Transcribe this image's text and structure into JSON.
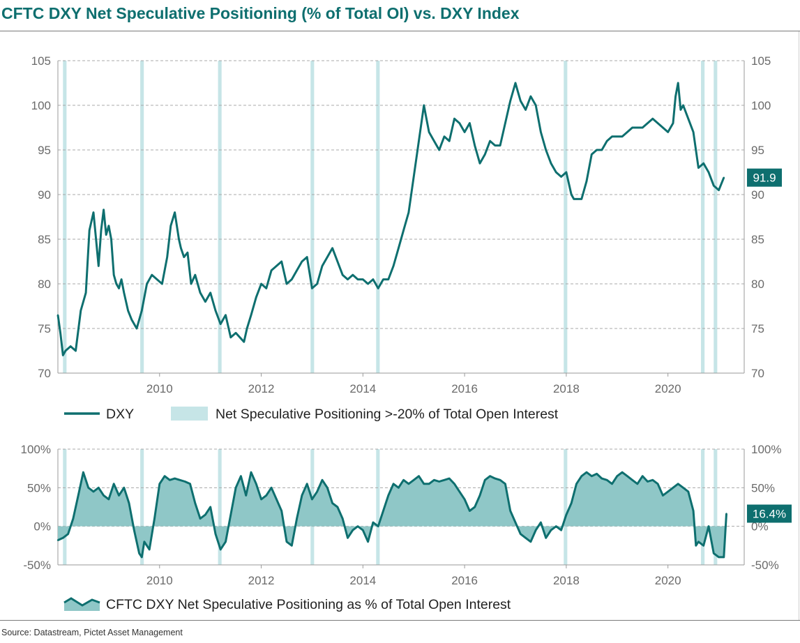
{
  "title": "CFTC DXY Net Speculative Positioning (% of Total OI) vs. DXY Index",
  "source": "Source: Datastream, Pictet Asset Management",
  "colors": {
    "line": "#0e6f6f",
    "highlight": "#c6e5e7",
    "area": "#8fc7c7",
    "grid": "#a8a8a8"
  },
  "chart_data": [
    {
      "type": "line",
      "name": "top-panel",
      "x_tick_labels": [
        "2010",
        "2012",
        "2014",
        "2016",
        "2018",
        "2020"
      ],
      "xlim": [
        2008.0,
        2021.5
      ],
      "ylim": [
        70,
        105
      ],
      "y_ticks": [
        70,
        75,
        80,
        85,
        90,
        95,
        100,
        105
      ],
      "y_tick_labels": [
        "70",
        "75",
        "80",
        "85",
        "90",
        "95",
        "100",
        "105"
      ],
      "grid": true,
      "legend_placement": "bottom",
      "last_value_label": "91.9",
      "highlight_periods": [
        [
          2008.1,
          2008.17
        ],
        [
          2009.62,
          2009.69
        ],
        [
          2011.15,
          2011.22
        ],
        [
          2012.97,
          2013.04
        ],
        [
          2014.26,
          2014.33
        ],
        [
          2017.95,
          2018.02
        ],
        [
          2020.65,
          2020.72
        ],
        [
          2020.9,
          2020.97
        ]
      ],
      "legend": {
        "line_label": "DXY",
        "band_label": "Net Speculative Positioning >-20% of Total Open Interest"
      },
      "series": [
        {
          "name": "DXY",
          "x": [
            2008.0,
            2008.05,
            2008.1,
            2008.15,
            2008.25,
            2008.35,
            2008.45,
            2008.55,
            2008.62,
            2008.7,
            2008.75,
            2008.8,
            2008.85,
            2008.9,
            2008.95,
            2009.0,
            2009.05,
            2009.1,
            2009.15,
            2009.2,
            2009.25,
            2009.3,
            2009.38,
            2009.45,
            2009.55,
            2009.65,
            2009.75,
            2009.85,
            2009.95,
            2010.05,
            2010.15,
            2010.22,
            2010.3,
            2010.38,
            2010.42,
            2010.48,
            2010.55,
            2010.62,
            2010.7,
            2010.8,
            2010.9,
            2011.0,
            2011.1,
            2011.2,
            2011.3,
            2011.4,
            2011.5,
            2011.58,
            2011.66,
            2011.72,
            2011.8,
            2011.9,
            2012.0,
            2012.1,
            2012.2,
            2012.3,
            2012.4,
            2012.5,
            2012.6,
            2012.7,
            2012.8,
            2012.9,
            2013.0,
            2013.1,
            2013.2,
            2013.3,
            2013.4,
            2013.5,
            2013.6,
            2013.7,
            2013.8,
            2013.9,
            2014.0,
            2014.1,
            2014.2,
            2014.3,
            2014.4,
            2014.5,
            2014.6,
            2014.7,
            2014.8,
            2014.9,
            2015.0,
            2015.1,
            2015.2,
            2015.25,
            2015.3,
            2015.4,
            2015.5,
            2015.6,
            2015.7,
            2015.8,
            2015.9,
            2016.0,
            2016.1,
            2016.2,
            2016.3,
            2016.4,
            2016.5,
            2016.6,
            2016.7,
            2016.8,
            2016.9,
            2017.0,
            2017.05,
            2017.1,
            2017.2,
            2017.3,
            2017.4,
            2017.5,
            2017.6,
            2017.7,
            2017.8,
            2017.9,
            2018.0,
            2018.1,
            2018.15,
            2018.2,
            2018.3,
            2018.4,
            2018.5,
            2018.6,
            2018.7,
            2018.8,
            2018.9,
            2019.0,
            2019.1,
            2019.2,
            2019.3,
            2019.4,
            2019.5,
            2019.6,
            2019.7,
            2019.8,
            2019.9,
            2020.0,
            2020.1,
            2020.15,
            2020.2,
            2020.25,
            2020.3,
            2020.4,
            2020.5,
            2020.6,
            2020.7,
            2020.8,
            2020.9,
            2021.0,
            2021.1
          ],
          "y": [
            76.5,
            74.5,
            72.0,
            72.5,
            73.0,
            72.5,
            77.0,
            79.0,
            86.0,
            88.0,
            85.0,
            82.0,
            86.0,
            88.3,
            85.5,
            86.5,
            85.0,
            81.0,
            80.0,
            79.5,
            80.5,
            79.0,
            77.0,
            76.0,
            75.0,
            77.0,
            80.0,
            81.0,
            80.5,
            80.0,
            83.0,
            86.5,
            88.0,
            85.0,
            84.0,
            83.0,
            83.5,
            80.0,
            81.0,
            79.0,
            78.0,
            79.0,
            77.0,
            75.5,
            76.5,
            74.0,
            74.5,
            74.0,
            73.5,
            75.0,
            76.5,
            78.5,
            80.0,
            79.5,
            81.5,
            82.0,
            82.5,
            80.0,
            80.5,
            81.5,
            82.5,
            83.0,
            79.5,
            80.0,
            82.0,
            83.0,
            84.0,
            82.5,
            81.0,
            80.5,
            81.0,
            80.5,
            80.5,
            80.0,
            80.5,
            79.5,
            80.5,
            80.5,
            82.0,
            84.0,
            86.0,
            88.0,
            92.0,
            96.0,
            100.0,
            98.5,
            97.0,
            96.0,
            95.0,
            96.5,
            96.0,
            98.5,
            98.0,
            97.0,
            98.0,
            95.5,
            93.5,
            94.5,
            96.0,
            95.5,
            95.5,
            98.0,
            100.5,
            102.5,
            101.5,
            100.5,
            99.5,
            101.0,
            100.0,
            97.0,
            95.0,
            93.5,
            92.5,
            92.0,
            92.5,
            90.0,
            89.5,
            89.5,
            89.5,
            91.5,
            94.5,
            95.0,
            95.0,
            96.0,
            96.5,
            96.5,
            96.5,
            97.0,
            97.5,
            97.5,
            97.5,
            98.0,
            98.5,
            98.0,
            97.5,
            97.0,
            98.0,
            101.0,
            102.5,
            99.5,
            100.0,
            98.5,
            97.0,
            93.0,
            93.5,
            92.5,
            91.0,
            90.5,
            91.9
          ]
        }
      ]
    },
    {
      "type": "area",
      "name": "bottom-panel",
      "x_tick_labels": [
        "2010",
        "2012",
        "2014",
        "2016",
        "2018",
        "2020"
      ],
      "xlim": [
        2008.0,
        2021.5
      ],
      "ylim": [
        -50,
        100
      ],
      "y_ticks": [
        -50,
        0,
        50,
        100
      ],
      "y_tick_labels": [
        "-50%",
        "0%",
        "50%",
        "100%"
      ],
      "grid": true,
      "legend_placement": "bottom",
      "last_value_label": "16.4%",
      "highlight_periods": [
        [
          2008.1,
          2008.17
        ],
        [
          2009.62,
          2009.69
        ],
        [
          2011.15,
          2011.22
        ],
        [
          2012.97,
          2013.04
        ],
        [
          2014.26,
          2014.33
        ],
        [
          2017.95,
          2018.02
        ],
        [
          2020.65,
          2020.72
        ],
        [
          2020.9,
          2020.97
        ]
      ],
      "legend": {
        "area_label": "CFTC DXY Net Speculative Positioning as % of Total Open Interest"
      },
      "series": [
        {
          "name": "CFTC DXY Net Speculative Positioning as % of Total Open Interest",
          "x": [
            2008.0,
            2008.1,
            2008.2,
            2008.3,
            2008.4,
            2008.5,
            2008.6,
            2008.7,
            2008.8,
            2008.9,
            2009.0,
            2009.1,
            2009.2,
            2009.3,
            2009.4,
            2009.5,
            2009.6,
            2009.65,
            2009.7,
            2009.8,
            2009.9,
            2010.0,
            2010.1,
            2010.2,
            2010.3,
            2010.4,
            2010.5,
            2010.6,
            2010.7,
            2010.8,
            2010.9,
            2011.0,
            2011.1,
            2011.2,
            2011.3,
            2011.4,
            2011.5,
            2011.6,
            2011.7,
            2011.8,
            2011.9,
            2012.0,
            2012.1,
            2012.2,
            2012.3,
            2012.4,
            2012.5,
            2012.6,
            2012.7,
            2012.8,
            2012.9,
            2013.0,
            2013.1,
            2013.2,
            2013.3,
            2013.4,
            2013.5,
            2013.6,
            2013.7,
            2013.8,
            2013.9,
            2014.0,
            2014.1,
            2014.2,
            2014.3,
            2014.4,
            2014.5,
            2014.6,
            2014.7,
            2014.8,
            2014.9,
            2015.0,
            2015.1,
            2015.2,
            2015.3,
            2015.4,
            2015.5,
            2015.6,
            2015.7,
            2015.8,
            2015.9,
            2016.0,
            2016.1,
            2016.2,
            2016.3,
            2016.4,
            2016.5,
            2016.6,
            2016.7,
            2016.8,
            2016.9,
            2017.0,
            2017.1,
            2017.2,
            2017.3,
            2017.4,
            2017.5,
            2017.6,
            2017.7,
            2017.8,
            2017.9,
            2018.0,
            2018.1,
            2018.2,
            2018.3,
            2018.4,
            2018.5,
            2018.6,
            2018.7,
            2018.8,
            2018.9,
            2019.0,
            2019.1,
            2019.2,
            2019.3,
            2019.4,
            2019.5,
            2019.6,
            2019.7,
            2019.8,
            2019.9,
            2020.0,
            2020.1,
            2020.2,
            2020.3,
            2020.4,
            2020.5,
            2020.55,
            2020.6,
            2020.7,
            2020.8,
            2020.9,
            2021.0,
            2021.1,
            2021.15
          ],
          "y": [
            -18,
            -15,
            -10,
            10,
            40,
            70,
            50,
            45,
            50,
            40,
            35,
            55,
            40,
            50,
            30,
            -5,
            -35,
            -40,
            -20,
            -30,
            10,
            55,
            65,
            60,
            62,
            60,
            58,
            55,
            30,
            10,
            15,
            25,
            -10,
            -30,
            -20,
            15,
            50,
            65,
            40,
            70,
            55,
            35,
            40,
            50,
            35,
            20,
            -20,
            -25,
            10,
            40,
            55,
            35,
            45,
            60,
            50,
            30,
            25,
            10,
            -15,
            -5,
            0,
            -5,
            -20,
            5,
            0,
            20,
            40,
            55,
            50,
            60,
            55,
            60,
            65,
            55,
            55,
            60,
            58,
            60,
            62,
            55,
            45,
            35,
            20,
            25,
            40,
            60,
            65,
            62,
            60,
            55,
            20,
            5,
            -10,
            -15,
            -20,
            -5,
            5,
            -15,
            -5,
            0,
            -5,
            15,
            30,
            55,
            65,
            70,
            65,
            68,
            62,
            60,
            55,
            65,
            70,
            65,
            60,
            55,
            65,
            58,
            60,
            55,
            40,
            45,
            50,
            55,
            50,
            45,
            20,
            -25,
            -20,
            -25,
            0,
            -35,
            -40,
            -40,
            16.4
          ]
        }
      ]
    }
  ]
}
